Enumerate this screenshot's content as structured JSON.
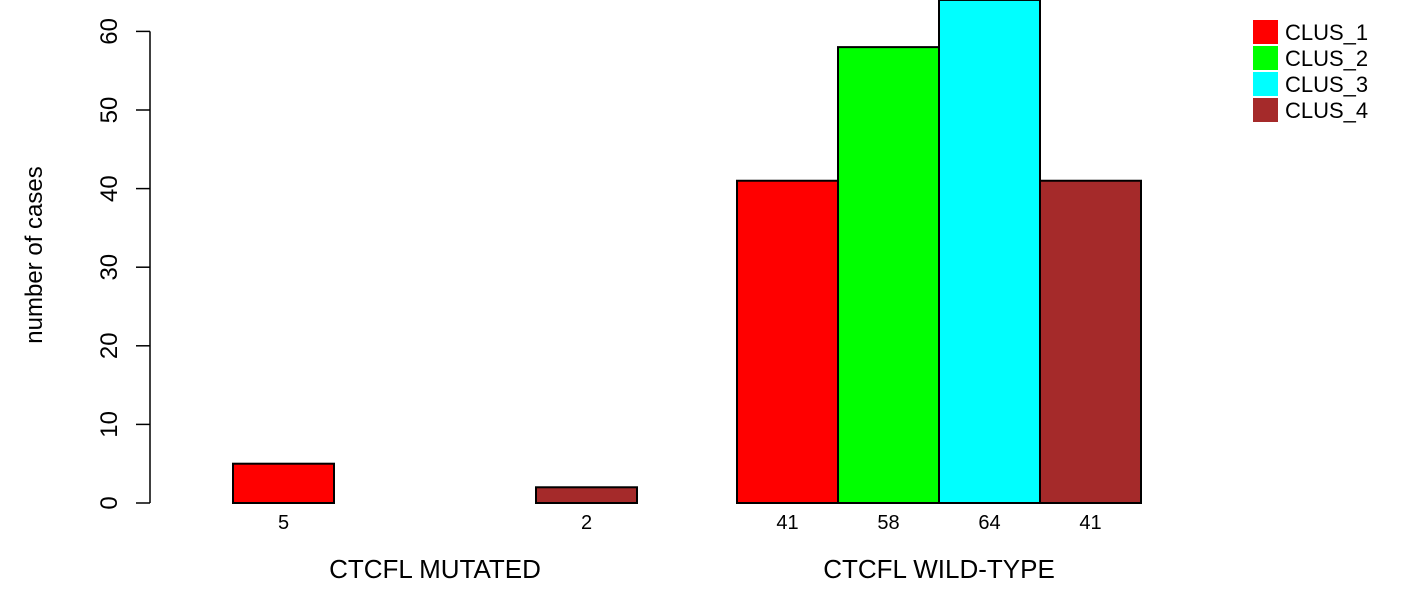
{
  "chart_data": {
    "type": "bar",
    "ylabel": "number of cases",
    "ylim": [
      0,
      64
    ],
    "yticks": [
      0,
      10,
      20,
      30,
      40,
      50,
      60
    ],
    "grid": false,
    "legend_position": "top-right",
    "series": [
      {
        "name": "CLUS_1",
        "color": "#ff0000"
      },
      {
        "name": "CLUS_2",
        "color": "#00ff00"
      },
      {
        "name": "CLUS_3",
        "color": "#00ffff"
      },
      {
        "name": "CLUS_4",
        "color": "#a52a2a"
      }
    ],
    "groups": [
      {
        "label": "CTCFL MUTATED",
        "values": [
          5,
          0,
          0,
          2
        ]
      },
      {
        "label": "CTCFL WILD-TYPE",
        "values": [
          41,
          58,
          64,
          41
        ]
      }
    ]
  }
}
